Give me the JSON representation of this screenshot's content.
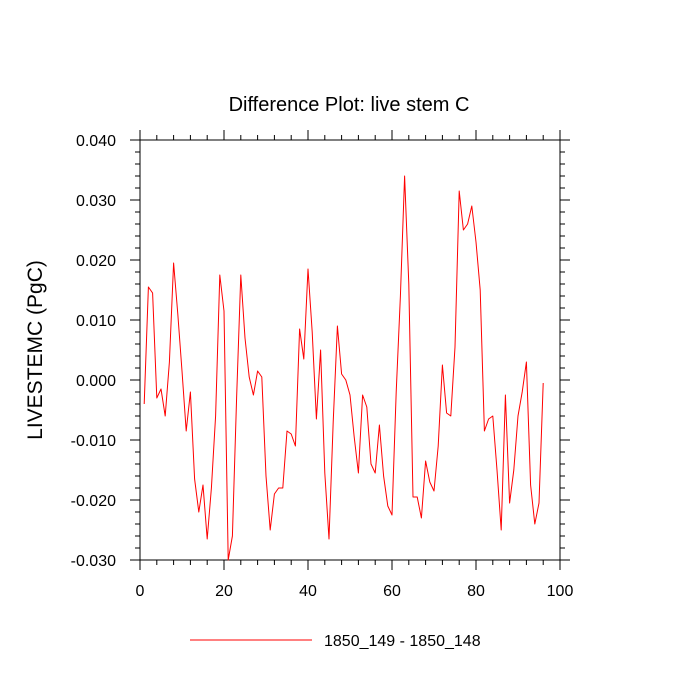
{
  "chart_data": {
    "type": "line",
    "title": "Difference Plot: live stem C",
    "xlabel": "",
    "ylabel": "LIVESTEMC  (PgC)",
    "xlim": [
      0,
      100
    ],
    "ylim": [
      -0.03,
      0.04
    ],
    "xticks": [
      0,
      20,
      40,
      60,
      80,
      100
    ],
    "xtick_labels": [
      "0",
      "20",
      "40",
      "60",
      "80",
      "100"
    ],
    "yticks": [
      -0.03,
      -0.02,
      -0.01,
      0.0,
      0.01,
      0.02,
      0.03,
      0.04
    ],
    "ytick_labels": [
      "-0.030",
      "-0.020",
      "-0.010",
      "0.000",
      "0.010",
      "0.020",
      "0.030",
      "0.040"
    ],
    "grid": false,
    "legend_position": "bottom-center",
    "series": [
      {
        "name": "1850_149 - 1850_148",
        "color": "#ff0000",
        "x": [
          1,
          2,
          3,
          4,
          5,
          6,
          7,
          8,
          9,
          10,
          11,
          12,
          13,
          14,
          15,
          16,
          17,
          18,
          19,
          20,
          21,
          22,
          23,
          24,
          25,
          26,
          27,
          28,
          29,
          30,
          31,
          32,
          33,
          34,
          35,
          36,
          37,
          38,
          39,
          40,
          41,
          42,
          43,
          44,
          45,
          46,
          47,
          48,
          49,
          50,
          51,
          52,
          53,
          54,
          55,
          56,
          57,
          58,
          59,
          60,
          61,
          62,
          63,
          64,
          65,
          66,
          67,
          68,
          69,
          70,
          71,
          72,
          73,
          74,
          75,
          76,
          77,
          78,
          79,
          80,
          81,
          82,
          83,
          84,
          85,
          86,
          87,
          88,
          89,
          90,
          91,
          92,
          93,
          94,
          95,
          96
        ],
        "values": [
          -0.004,
          0.0155,
          0.0145,
          -0.003,
          -0.0015,
          -0.006,
          0.003,
          0.0195,
          0.011,
          0.0015,
          -0.0085,
          -0.002,
          -0.0165,
          -0.022,
          -0.0175,
          -0.0265,
          -0.018,
          -0.006,
          0.0175,
          0.0115,
          -0.03,
          -0.026,
          -0.003,
          0.0175,
          0.007,
          0.0005,
          -0.0025,
          0.0015,
          0.0005,
          -0.016,
          -0.025,
          -0.019,
          -0.018,
          -0.018,
          -0.0085,
          -0.009,
          -0.011,
          0.0085,
          0.0035,
          0.0185,
          0.008,
          -0.0065,
          0.005,
          -0.0155,
          -0.0265,
          -0.007,
          0.009,
          0.001,
          0.0,
          -0.0025,
          -0.0095,
          -0.0155,
          -0.0025,
          -0.0045,
          -0.014,
          -0.0155,
          -0.0075,
          -0.016,
          -0.021,
          -0.0225,
          -0.002,
          0.014,
          0.034,
          0.016,
          -0.0195,
          -0.0195,
          -0.023,
          -0.0135,
          -0.017,
          -0.0185,
          -0.011,
          0.0025,
          -0.0055,
          -0.006,
          0.0055,
          0.0315,
          0.025,
          0.026,
          0.029,
          0.023,
          0.015,
          -0.0085,
          -0.0065,
          -0.006,
          -0.015,
          -0.025,
          -0.0025,
          -0.0205,
          -0.015,
          -0.006,
          -0.002,
          0.003,
          -0.0175,
          -0.024,
          -0.0205,
          -0.0005
        ]
      }
    ]
  }
}
